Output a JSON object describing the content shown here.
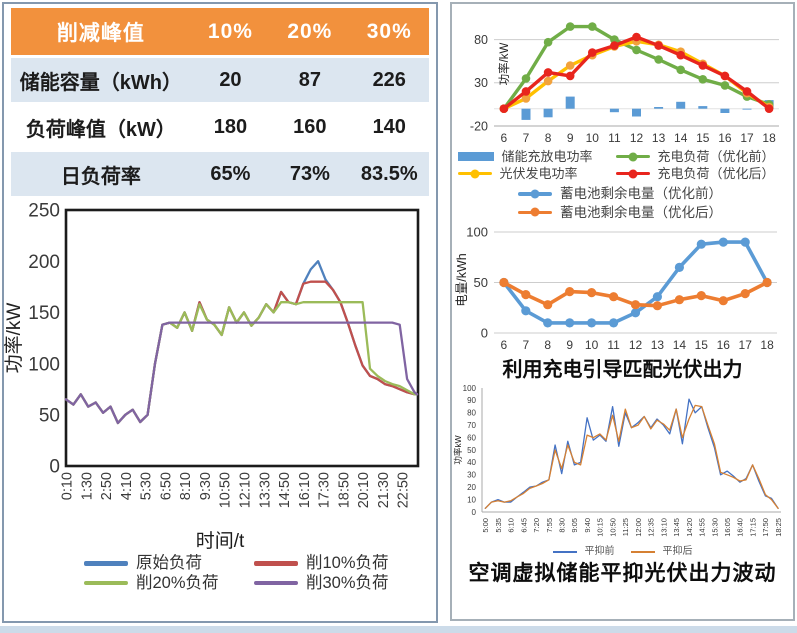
{
  "left_panel": {
    "table": {
      "header": {
        "label": "削减峰值",
        "cols": [
          "10%",
          "20%",
          "30%"
        ],
        "bg": "#F2913D",
        "text_color": "#ffffff"
      },
      "rows": [
        {
          "label": "储能容量（kWh）",
          "values": [
            "20",
            "87",
            "226"
          ],
          "bg": "#DCE6F0"
        },
        {
          "label": "负荷峰值（kW）",
          "values": [
            "180",
            "160",
            "140"
          ],
          "bg": "#FFFFFF"
        },
        {
          "label": "日负荷率",
          "values": [
            "65%",
            "73%",
            "83.5%"
          ],
          "bg": "#DCE6F0"
        }
      ]
    }
  },
  "right_panel": {
    "caption1": "利用充电引导匹配光伏出力",
    "caption2": "空调虚拟储能平抑光伏出力波动"
  },
  "chart_data": {
    "left_load": {
      "type": "line",
      "ylabel": "功率/kW",
      "xlabel": "时间/t",
      "x_domain": [
        0.167,
        23.9
      ],
      "y_domain": [
        0,
        250
      ],
      "y_ticks": [
        0,
        50,
        100,
        150,
        200,
        250
      ],
      "x_ticks": [
        "0:10",
        "1:30",
        "2:50",
        "4:10",
        "5:30",
        "6:50",
        "8:10",
        "9:30",
        "10:50",
        "12:10",
        "13:30",
        "14:50",
        "16:10",
        "17:30",
        "18:50",
        "20:10",
        "21:30",
        "22:50"
      ],
      "frame": "border",
      "x": [
        "0:10",
        "0:40",
        "1:10",
        "1:40",
        "2:10",
        "2:40",
        "3:10",
        "3:40",
        "4:10",
        "4:40",
        "5:10",
        "5:40",
        "6:10",
        "6:40",
        "7:10",
        "7:40",
        "8:10",
        "8:40",
        "9:10",
        "9:40",
        "10:10",
        "10:40",
        "11:10",
        "11:40",
        "12:10",
        "12:40",
        "13:10",
        "13:40",
        "14:10",
        "14:40",
        "15:10",
        "15:40",
        "16:10",
        "16:40",
        "17:10",
        "17:40",
        "18:10",
        "18:40",
        "19:10",
        "19:40",
        "20:10",
        "20:40",
        "21:10",
        "21:40",
        "22:10",
        "22:40",
        "23:10",
        "23:40",
        "23:50"
      ],
      "series": [
        {
          "name": "原始负荷",
          "color": "#4F81BD",
          "values": [
            65,
            60,
            70,
            58,
            62,
            52,
            58,
            42,
            50,
            55,
            43,
            50,
            100,
            138,
            140,
            135,
            150,
            132,
            160,
            143,
            138,
            128,
            155,
            140,
            150,
            137,
            145,
            158,
            150,
            170,
            160,
            158,
            178,
            192,
            200,
            182,
            172,
            160,
            140,
            118,
            98,
            88,
            85,
            80,
            78,
            75,
            72,
            70,
            70
          ]
        },
        {
          "name": "削10%负荷",
          "color": "#C0504D",
          "values": [
            65,
            60,
            70,
            58,
            62,
            52,
            58,
            42,
            50,
            55,
            43,
            50,
            100,
            138,
            140,
            135,
            150,
            132,
            160,
            143,
            138,
            128,
            155,
            140,
            150,
            137,
            145,
            158,
            150,
            170,
            160,
            158,
            178,
            180,
            180,
            180,
            172,
            160,
            140,
            118,
            98,
            88,
            85,
            80,
            78,
            75,
            72,
            70,
            70
          ]
        },
        {
          "name": "削20%负荷",
          "color": "#9BBB59",
          "values": [
            65,
            60,
            70,
            58,
            62,
            52,
            58,
            42,
            50,
            55,
            43,
            50,
            100,
            138,
            140,
            135,
            150,
            132,
            158,
            143,
            138,
            128,
            155,
            140,
            150,
            137,
            145,
            158,
            150,
            160,
            160,
            158,
            160,
            160,
            160,
            160,
            160,
            160,
            160,
            160,
            160,
            95,
            88,
            83,
            80,
            78,
            74,
            70,
            70
          ]
        },
        {
          "name": "削30%负荷",
          "color": "#8064A2",
          "values": [
            65,
            60,
            70,
            58,
            62,
            52,
            58,
            42,
            50,
            55,
            43,
            50,
            100,
            138,
            140,
            140,
            140,
            140,
            140,
            140,
            140,
            140,
            140,
            140,
            140,
            140,
            140,
            140,
            140,
            140,
            140,
            140,
            140,
            140,
            140,
            140,
            140,
            140,
            140,
            140,
            140,
            140,
            140,
            140,
            140,
            138,
            85,
            72,
            70
          ]
        }
      ]
    },
    "pv_charge": {
      "type": "bar+line",
      "ylabel": "功率/kW",
      "x_domain": [
        5.55,
        18.45
      ],
      "y_domain": [
        -20,
        105
      ],
      "y_ticks": [
        80,
        30,
        -20
      ],
      "gridlines": [
        80,
        30
      ],
      "zero_line": true,
      "frame": "b",
      "x_ticks": [
        6,
        7,
        8,
        9,
        10,
        11,
        12,
        13,
        14,
        15,
        16,
        17,
        18
      ],
      "x": [
        6,
        7,
        8,
        9,
        10,
        11,
        12,
        13,
        14,
        15,
        16,
        17,
        18
      ],
      "series": [
        {
          "name": "储能充放电功率",
          "color": "#5B9BD5",
          "type": "bar",
          "values": [
            0,
            -13,
            -10,
            14,
            0,
            -4,
            -9,
            2,
            8,
            3,
            -5,
            -1,
            10
          ]
        },
        {
          "name": "充电负荷（优化前）",
          "color": "#70AD47",
          "marker": true,
          "values": [
            0,
            35,
            77,
            95,
            95,
            80,
            68,
            57,
            45,
            34,
            27,
            14,
            5
          ]
        },
        {
          "name": "光伏发电功率",
          "color": "#FFC000",
          "marker": true,
          "marker_color": "#F2A23C",
          "values": [
            0,
            12,
            32,
            50,
            62,
            72,
            78,
            74,
            66,
            52,
            38,
            18,
            2
          ]
        },
        {
          "name": "充电负荷（优化后）",
          "color": "#E8251D",
          "marker": true,
          "values": [
            0,
            20,
            42,
            38,
            65,
            73,
            83,
            73,
            62,
            50,
            38,
            20,
            0
          ]
        }
      ]
    },
    "battery_soc": {
      "type": "line",
      "ylabel": "电量/kWh",
      "x_domain": [
        5.55,
        18.45
      ],
      "y_domain": [
        0,
        105
      ],
      "y_ticks": [
        0,
        50,
        100
      ],
      "gridlines": [
        0,
        50,
        100
      ],
      "frame": "",
      "x_ticks": [
        6,
        7,
        8,
        9,
        10,
        11,
        12,
        13,
        14,
        15,
        16,
        17,
        18
      ],
      "x": [
        6,
        7,
        8,
        9,
        10,
        11,
        12,
        13,
        14,
        15,
        16,
        17,
        18
      ],
      "series": [
        {
          "name": "蓄电池剩余电量（优化前）",
          "color": "#5B9BD5",
          "marker": true,
          "values": [
            50,
            22,
            10,
            10,
            10,
            10,
            20,
            36,
            65,
            88,
            90,
            90,
            50
          ]
        },
        {
          "name": "蓄电池剩余电量（优化后）",
          "color": "#ED7D31",
          "marker": true,
          "values": [
            50,
            38,
            28,
            41,
            40,
            36,
            28,
            27,
            33,
            37,
            32,
            39,
            50
          ]
        }
      ]
    },
    "smoothing": {
      "type": "line",
      "ylabel": "功率kW",
      "x_domain": [
        4.85,
        18.55
      ],
      "y_domain": [
        0,
        100
      ],
      "y_ticks": [
        0,
        10,
        20,
        30,
        40,
        50,
        60,
        70,
        80,
        90,
        100
      ],
      "frame": "lb",
      "x_ticks": [
        "5:00",
        "5:35",
        "6:10",
        "6:45",
        "7:20",
        "7:55",
        "8:30",
        "9:05",
        "9:40",
        "10:15",
        "10:50",
        "11:25",
        "12:00",
        "12:35",
        "13:10",
        "13:45",
        "14:20",
        "14:55",
        "15:30",
        "16:05",
        "16:40",
        "17:15",
        "17:50",
        "18:25"
      ],
      "x": [
        "5:00",
        "5:17",
        "5:35",
        "5:52",
        "6:10",
        "6:27",
        "6:45",
        "7:02",
        "7:20",
        "7:37",
        "7:55",
        "8:12",
        "8:30",
        "8:47",
        "9:05",
        "9:22",
        "9:40",
        "9:57",
        "10:15",
        "10:32",
        "10:50",
        "11:07",
        "11:25",
        "11:42",
        "12:00",
        "12:17",
        "12:35",
        "12:52",
        "13:10",
        "13:27",
        "13:45",
        "14:02",
        "14:20",
        "14:37",
        "14:55",
        "15:12",
        "15:30",
        "15:47",
        "16:05",
        "16:22",
        "16:40",
        "16:57",
        "17:15",
        "17:32",
        "17:50",
        "18:07",
        "18:25"
      ],
      "series": [
        {
          "name": "平抑前",
          "color": "#4472C4",
          "values": [
            3,
            8,
            10,
            8,
            8,
            12,
            16,
            20,
            21,
            24,
            26,
            54,
            31,
            57,
            38,
            40,
            76,
            58,
            62,
            57,
            85,
            53,
            80,
            68,
            72,
            77,
            68,
            75,
            70,
            63,
            83,
            55,
            91,
            80,
            85,
            68,
            52,
            30,
            33,
            29,
            24,
            27,
            38,
            25,
            13,
            11,
            3
          ]
        },
        {
          "name": "平抑后",
          "color": "#D58033",
          "values": [
            3,
            8,
            9,
            8,
            9,
            12,
            15,
            19,
            21,
            23,
            26,
            50,
            35,
            54,
            40,
            38,
            62,
            60,
            63,
            58,
            78,
            57,
            83,
            68,
            70,
            77,
            67,
            74,
            71,
            66,
            83,
            60,
            75,
            86,
            85,
            70,
            55,
            32,
            30,
            28,
            25,
            26,
            38,
            27,
            14,
            10,
            3
          ]
        }
      ]
    }
  }
}
